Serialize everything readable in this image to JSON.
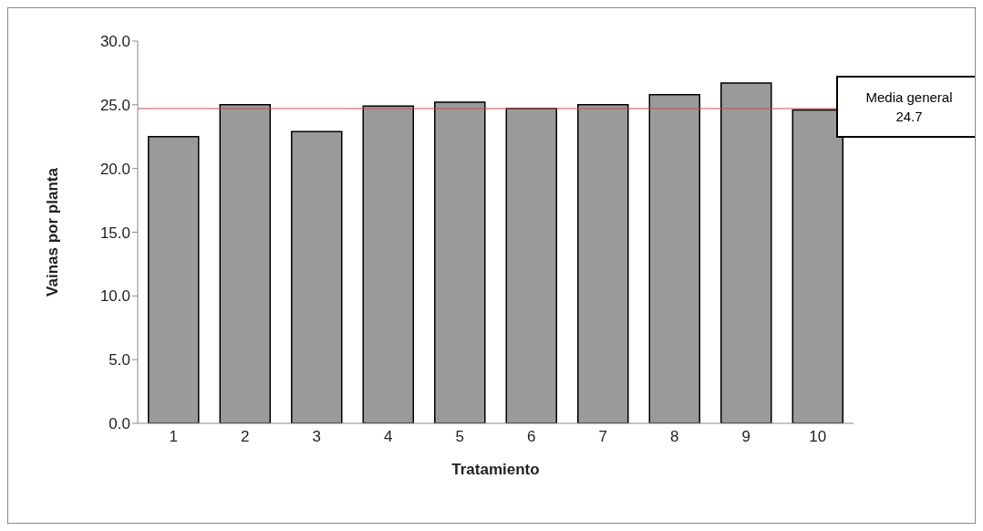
{
  "chart_data": {
    "type": "bar",
    "xlabel": "Tratamiento",
    "ylabel": "Vainas por planta",
    "categories": [
      "1",
      "2",
      "3",
      "4",
      "5",
      "6",
      "7",
      "8",
      "9",
      "10"
    ],
    "values": [
      22.5,
      25.0,
      22.9,
      24.9,
      25.2,
      24.7,
      25.0,
      25.8,
      26.7,
      24.6
    ],
    "color": "#9a9a9a",
    "ylim": [
      0,
      30
    ],
    "yticks": [
      {
        "value": 0,
        "label": "0.0"
      },
      {
        "value": 5,
        "label": "5.0"
      },
      {
        "value": 10,
        "label": "10.0"
      },
      {
        "value": 15,
        "label": "15.0"
      },
      {
        "value": 20,
        "label": "20.0"
      },
      {
        "value": 25,
        "label": "25.0"
      },
      {
        "value": 30,
        "label": "30.0"
      }
    ],
    "ref_lines": [
      {
        "axis": "y",
        "value": 24.7,
        "label": "Media general 24.7",
        "color": "#c0504d"
      }
    ],
    "grid": false,
    "legend": false
  }
}
